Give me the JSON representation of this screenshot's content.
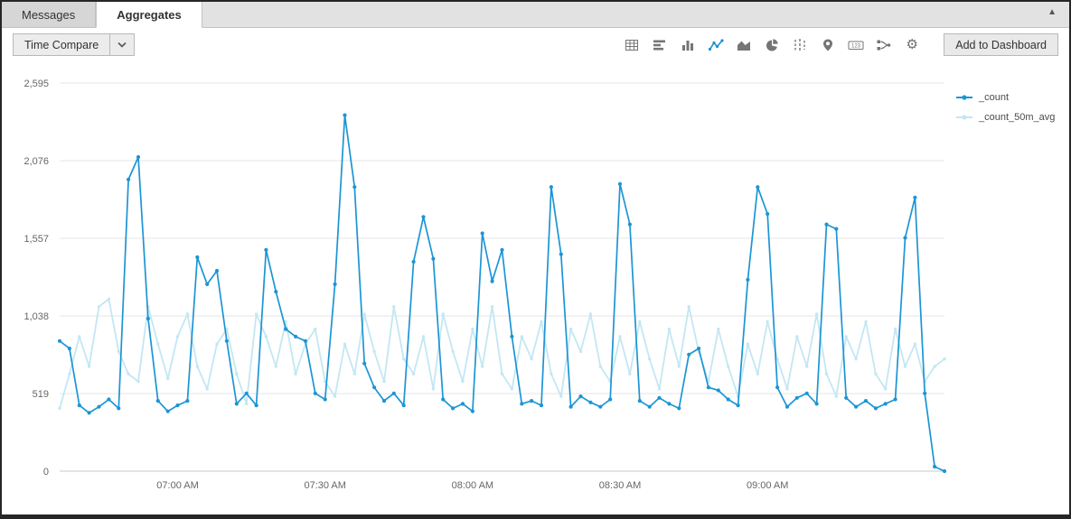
{
  "tabs": [
    {
      "label": "Messages"
    },
    {
      "label": "Aggregates"
    }
  ],
  "panel": {
    "collapse_icon": "collapse-up"
  },
  "toolbar": {
    "time_compare_label": "Time Compare",
    "add_to_dashboard_label": "Add to Dashboard",
    "chart_type_icons": [
      "table",
      "bar-horizontal",
      "column",
      "line",
      "area",
      "pie",
      "box-plot",
      "map",
      "single-value",
      "flow",
      "settings-gear"
    ],
    "active_chart_type": "line",
    "single_value_icon_text": "123"
  },
  "colors": {
    "count_line": "#1b95d4",
    "avg_line": "#c3e7f3",
    "grid": "#e4e4e4",
    "baseline": "#c9c9c9",
    "axis_text": "#666666"
  },
  "chart_data": {
    "type": "line",
    "title": "",
    "xlabel": "",
    "ylabel": "",
    "grid": true,
    "legend_position": "right",
    "ylim": [
      0,
      2595
    ],
    "x_axis": {
      "tick_indices": [
        12,
        27,
        42,
        57,
        72
      ],
      "tick_labels": [
        "07:00 AM",
        "07:30 AM",
        "08:00 AM",
        "08:30 AM",
        "09:00 AM"
      ]
    },
    "y_axis": {
      "ticks": [
        0,
        519,
        1038,
        1557,
        2076,
        2595
      ],
      "tick_labels": [
        "0",
        "519",
        "1,038",
        "1,557",
        "2,076",
        "2,595"
      ],
      "max": 2595
    },
    "legend": [
      "_count",
      "_count_50m_avg"
    ],
    "series": [
      {
        "name": "_count_50m_avg",
        "color": "#c3e7f3",
        "line_width": 1.8,
        "marker": 1.7,
        "values": [
          420,
          650,
          900,
          700,
          1100,
          1150,
          800,
          650,
          600,
          1100,
          850,
          620,
          900,
          1050,
          700,
          550,
          850,
          950,
          650,
          450,
          1050,
          900,
          700,
          1000,
          650,
          850,
          950,
          600,
          500,
          850,
          650,
          1050,
          800,
          600,
          1100,
          750,
          650,
          900,
          550,
          1050,
          800,
          600,
          950,
          700,
          1100,
          650,
          550,
          900,
          750,
          1000,
          650,
          500,
          950,
          800,
          1050,
          700,
          600,
          900,
          650,
          1000,
          750,
          550,
          950,
          700,
          1100,
          800,
          600,
          950,
          700,
          500,
          850,
          650,
          1000,
          750,
          550,
          900,
          700,
          1050,
          650,
          500,
          900,
          750,
          1000,
          650,
          550,
          950,
          700,
          850,
          600,
          700,
          750
        ]
      },
      {
        "name": "_count",
        "color": "#1b95d4",
        "line_width": 1.7,
        "marker": 2.1,
        "values": [
          870,
          820,
          440,
          390,
          430,
          480,
          420,
          1950,
          2100,
          1020,
          470,
          400,
          440,
          470,
          1430,
          1250,
          1340,
          870,
          450,
          520,
          440,
          1480,
          1200,
          950,
          900,
          870,
          520,
          480,
          1250,
          2380,
          1900,
          720,
          560,
          470,
          520,
          440,
          1400,
          1700,
          1420,
          480,
          420,
          450,
          400,
          1590,
          1270,
          1480,
          900,
          450,
          470,
          440,
          1900,
          1450,
          430,
          500,
          460,
          430,
          480,
          1920,
          1650,
          470,
          430,
          490,
          450,
          420,
          780,
          820,
          560,
          540,
          480,
          440,
          1280,
          1900,
          1720,
          560,
          430,
          490,
          520,
          450,
          1650,
          1620,
          490,
          430,
          470,
          420,
          450,
          480,
          1560,
          1830,
          520,
          30,
          0
        ]
      }
    ]
  }
}
